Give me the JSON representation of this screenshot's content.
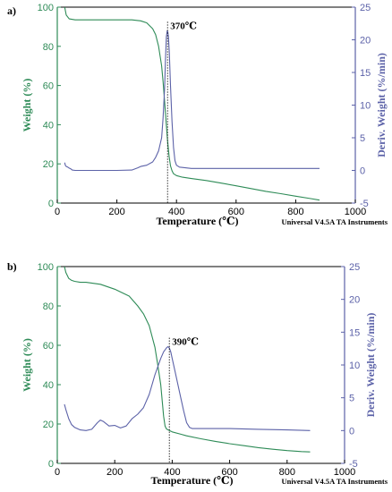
{
  "chart_data": [
    {
      "type": "line",
      "panel_label": "a)",
      "xlabel": "Temperature (℃)",
      "ylabel_left": "Weight (%)",
      "ylabel_right": "Deriv. Weight (%/min)",
      "credit": "Universal V4.5A TA Instruments",
      "xlim": [
        0,
        1000
      ],
      "ylim_left": [
        0,
        100
      ],
      "ylim_right": [
        -5,
        25
      ],
      "xticks": [
        0,
        200,
        400,
        600,
        800,
        1000
      ],
      "yticks_left": [
        0,
        20,
        40,
        60,
        80,
        100
      ],
      "yticks_right": [
        -5,
        0,
        5,
        10,
        15,
        20,
        25
      ],
      "annotation": {
        "text": "370℃",
        "x": 370
      },
      "colors": {
        "weight": "#2e8b57",
        "deriv": "#5c62a8",
        "axis_left": "#2e8b57",
        "axis_right": "#5c62a8"
      },
      "series": [
        {
          "name": "Weight (%)",
          "axis": "left",
          "x": [
            25,
            30,
            40,
            60,
            100,
            150,
            200,
            250,
            280,
            300,
            320,
            330,
            340,
            350,
            355,
            360,
            365,
            370,
            375,
            380,
            385,
            390,
            400,
            420,
            450,
            500,
            550,
            600,
            650,
            700,
            750,
            800,
            850,
            880
          ],
          "y": [
            100,
            96,
            94,
            93.5,
            93.5,
            93.5,
            93.5,
            93.5,
            93,
            92,
            89,
            86,
            80,
            70,
            62,
            52,
            42,
            32,
            24,
            19,
            16.5,
            15,
            14,
            13.2,
            12.5,
            11.5,
            10.2,
            8.8,
            7.4,
            6,
            4.8,
            3.5,
            2.3,
            1.5
          ]
        },
        {
          "name": "Deriv. Weight (%/min)",
          "axis": "right",
          "x": [
            25,
            27,
            30,
            35,
            40,
            45,
            50,
            60,
            80,
            120,
            200,
            250,
            270,
            280,
            300,
            320,
            330,
            340,
            350,
            355,
            360,
            363,
            366,
            369,
            371,
            373,
            376,
            380,
            385,
            390,
            395,
            400,
            410,
            430,
            450,
            500,
            600,
            700,
            800,
            880
          ],
          "y": [
            1.2,
            0.8,
            0.6,
            0.5,
            0.35,
            0.25,
            0.05,
            0,
            0,
            0,
            0,
            0.05,
            0.4,
            0.6,
            0.8,
            1.3,
            2,
            3,
            5,
            8,
            12.5,
            17,
            20.5,
            21.4,
            21.2,
            20.5,
            18,
            13,
            7.5,
            3.5,
            1.5,
            0.8,
            0.5,
            0.4,
            0.3,
            0.3,
            0.3,
            0.3,
            0.3,
            0.3
          ]
        }
      ]
    },
    {
      "type": "line",
      "panel_label": "b)",
      "xlabel": "Temperature (℃)",
      "ylabel_left": "Weight (%)",
      "ylabel_right": "Deriv. Weight (%/min)",
      "credit": "Universal V4.5A TA Instruments",
      "xlim": [
        0,
        1000
      ],
      "ylim_left": [
        0,
        100
      ],
      "ylim_right": [
        -5,
        25
      ],
      "xticks": [
        0,
        200,
        400,
        600,
        800,
        1000
      ],
      "yticks_left": [
        0,
        20,
        40,
        60,
        80,
        100
      ],
      "yticks_right": [
        -5,
        0,
        5,
        10,
        15,
        20,
        25
      ],
      "annotation": {
        "text": "390℃",
        "x": 390
      },
      "colors": {
        "weight": "#2e8b57",
        "deriv": "#5c62a8",
        "axis_left": "#2e8b57",
        "axis_right": "#5c62a8"
      },
      "series": [
        {
          "name": "Weight (%)",
          "axis": "left",
          "x": [
            25,
            30,
            40,
            50,
            60,
            80,
            100,
            150,
            200,
            250,
            280,
            300,
            320,
            340,
            350,
            360,
            365,
            370,
            375,
            380,
            390,
            400,
            430,
            450,
            500,
            550,
            600,
            650,
            700,
            750,
            800,
            850,
            880
          ],
          "y": [
            100,
            97,
            94,
            93,
            92.5,
            92,
            92,
            91,
            88.5,
            85,
            80,
            76,
            70,
            59,
            50,
            40,
            32,
            24,
            19,
            17.5,
            16.7,
            16,
            14.8,
            14,
            12.5,
            11.2,
            10,
            9,
            8,
            7.2,
            6.5,
            6,
            5.8
          ]
        },
        {
          "name": "Deriv. Weight (%/min)",
          "axis": "right",
          "x": [
            25,
            30,
            35,
            40,
            50,
            60,
            80,
            100,
            120,
            140,
            150,
            160,
            180,
            200,
            220,
            240,
            260,
            280,
            300,
            320,
            340,
            360,
            370,
            380,
            385,
            390,
            395,
            400,
            410,
            420,
            430,
            440,
            450,
            460,
            470,
            500,
            600,
            700,
            800,
            880
          ],
          "y": [
            4,
            3.2,
            2.5,
            1.8,
            0.9,
            0.5,
            0.1,
            0,
            0.2,
            1.2,
            1.6,
            1.4,
            0.7,
            0.8,
            0.4,
            0.7,
            1.8,
            2.5,
            3.5,
            5.5,
            8.5,
            11,
            12,
            12.6,
            12.8,
            12.6,
            12,
            11,
            9,
            7,
            5,
            3,
            1.2,
            0.5,
            0.3,
            0.3,
            0.3,
            0.2,
            0.1,
            0
          ]
        }
      ]
    }
  ]
}
